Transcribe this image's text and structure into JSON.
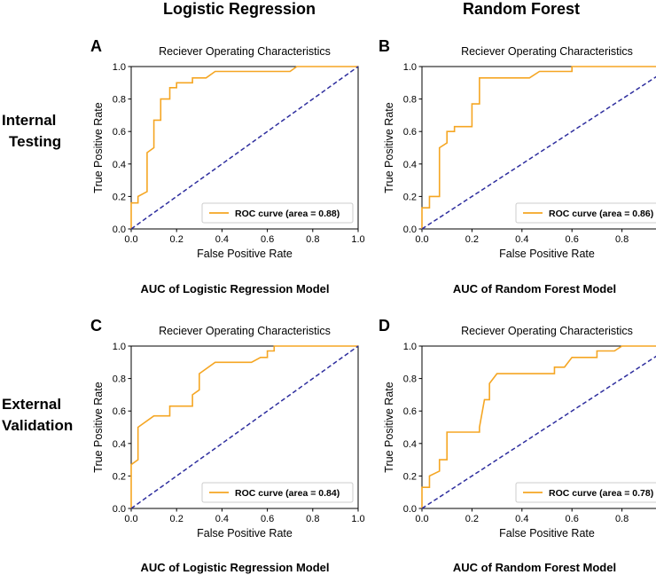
{
  "column_titles": [
    "Logistic Regression",
    "Random Forest"
  ],
  "row_titles": [
    {
      "line1": "Internal",
      "line2": "Testing"
    },
    {
      "line1": "External",
      "line2": "Validation"
    }
  ],
  "chart_data": [
    {
      "type": "line",
      "panel": "A",
      "title": "Reciever Operating Characteristics",
      "xlabel": "False Positive Rate",
      "ylabel": "True Positive Rate",
      "xlim": [
        0,
        1
      ],
      "ylim": [
        0,
        1
      ],
      "xticks": [
        "0.0",
        "0.2",
        "0.4",
        "0.6",
        "0.8",
        "1.0"
      ],
      "yticks": [
        "0.0",
        "0.2",
        "0.4",
        "0.6",
        "0.8",
        "1.0"
      ],
      "legend": "ROC curve (area = 0.88)",
      "legend_position": "lower-right",
      "caption": "AUC of Logistic Regression Model",
      "series": [
        {
          "name": "ROC curve",
          "color": "#f5a623",
          "points": [
            [
              0,
              0
            ],
            [
              0,
              0.16
            ],
            [
              0.03,
              0.16
            ],
            [
              0.03,
              0.2
            ],
            [
              0.07,
              0.23
            ],
            [
              0.07,
              0.47
            ],
            [
              0.1,
              0.5
            ],
            [
              0.1,
              0.67
            ],
            [
              0.13,
              0.67
            ],
            [
              0.13,
              0.8
            ],
            [
              0.17,
              0.8
            ],
            [
              0.17,
              0.87
            ],
            [
              0.2,
              0.87
            ],
            [
              0.2,
              0.9
            ],
            [
              0.27,
              0.9
            ],
            [
              0.27,
              0.93
            ],
            [
              0.33,
              0.93
            ],
            [
              0.37,
              0.97
            ],
            [
              0.7,
              0.97
            ],
            [
              0.73,
              1.0
            ],
            [
              1.0,
              1.0
            ]
          ]
        },
        {
          "name": "chance",
          "color": "#2e2e9e",
          "dashed": true,
          "points": [
            [
              0,
              0
            ],
            [
              1,
              1
            ]
          ]
        }
      ]
    },
    {
      "type": "line",
      "panel": "B",
      "title": "Reciever Operating Characteristics",
      "xlabel": "False Positive Rate",
      "ylabel": "True Positive Rate",
      "xlim": [
        0,
        1
      ],
      "ylim": [
        0,
        1
      ],
      "xticks": [
        "0.0",
        "0.2",
        "0.4",
        "0.6",
        "0.8",
        "1.0"
      ],
      "yticks": [
        "0.0",
        "0.2",
        "0.4",
        "0.6",
        "0.8",
        "1.0"
      ],
      "legend": "ROC curve (area = 0.86)",
      "legend_position": "lower-right",
      "caption": "AUC of Random Forest Model",
      "series": [
        {
          "name": "ROC curve",
          "color": "#f5a623",
          "points": [
            [
              0,
              0
            ],
            [
              0,
              0.13
            ],
            [
              0.03,
              0.13
            ],
            [
              0.03,
              0.2
            ],
            [
              0.07,
              0.2
            ],
            [
              0.07,
              0.5
            ],
            [
              0.1,
              0.53
            ],
            [
              0.1,
              0.6
            ],
            [
              0.13,
              0.6
            ],
            [
              0.13,
              0.63
            ],
            [
              0.17,
              0.63
            ],
            [
              0.2,
              0.63
            ],
            [
              0.2,
              0.77
            ],
            [
              0.23,
              0.77
            ],
            [
              0.23,
              0.93
            ],
            [
              0.43,
              0.93
            ],
            [
              0.47,
              0.97
            ],
            [
              0.6,
              0.97
            ],
            [
              0.6,
              1.0
            ],
            [
              1.0,
              1.0
            ]
          ]
        },
        {
          "name": "chance",
          "color": "#2e2e9e",
          "dashed": true,
          "points": [
            [
              0,
              0
            ],
            [
              1,
              1
            ]
          ]
        }
      ]
    },
    {
      "type": "line",
      "panel": "C",
      "title": "Reciever Operating Characteristics",
      "xlabel": "False Positive Rate",
      "ylabel": "True Positive Rate",
      "xlim": [
        0,
        1
      ],
      "ylim": [
        0,
        1
      ],
      "xticks": [
        "0.0",
        "0.2",
        "0.4",
        "0.6",
        "0.8",
        "1.0"
      ],
      "yticks": [
        "0.0",
        "0.2",
        "0.4",
        "0.6",
        "0.8",
        "1.0"
      ],
      "legend": "ROC curve (area = 0.84)",
      "legend_position": "lower-right",
      "caption": "AUC of Logistic Regression Model",
      "series": [
        {
          "name": "ROC curve",
          "color": "#f5a623",
          "points": [
            [
              0,
              0
            ],
            [
              0,
              0.27
            ],
            [
              0.03,
              0.3
            ],
            [
              0.03,
              0.5
            ],
            [
              0.1,
              0.57
            ],
            [
              0.17,
              0.57
            ],
            [
              0.17,
              0.63
            ],
            [
              0.27,
              0.63
            ],
            [
              0.27,
              0.7
            ],
            [
              0.3,
              0.73
            ],
            [
              0.3,
              0.83
            ],
            [
              0.37,
              0.9
            ],
            [
              0.53,
              0.9
            ],
            [
              0.57,
              0.93
            ],
            [
              0.6,
              0.93
            ],
            [
              0.6,
              0.97
            ],
            [
              0.63,
              0.97
            ],
            [
              0.63,
              1.0
            ],
            [
              1.0,
              1.0
            ]
          ]
        },
        {
          "name": "chance",
          "color": "#2e2e9e",
          "dashed": true,
          "points": [
            [
              0,
              0
            ],
            [
              1,
              1
            ]
          ]
        }
      ]
    },
    {
      "type": "line",
      "panel": "D",
      "title": "Reciever Operating Characteristics",
      "xlabel": "False Positive Rate",
      "ylabel": "True Positive Rate",
      "xlim": [
        0,
        1
      ],
      "ylim": [
        0,
        1
      ],
      "xticks": [
        "0.0",
        "0.2",
        "0.4",
        "0.6",
        "0.8",
        "1.0"
      ],
      "yticks": [
        "0.0",
        "0.2",
        "0.4",
        "0.6",
        "0.8",
        "1.0"
      ],
      "legend": "ROC curve (area = 0.78)",
      "legend_position": "lower-right",
      "caption": "AUC of Random Forest Model",
      "series": [
        {
          "name": "ROC curve",
          "color": "#f5a623",
          "points": [
            [
              0,
              0
            ],
            [
              0,
              0.13
            ],
            [
              0.03,
              0.13
            ],
            [
              0.03,
              0.2
            ],
            [
              0.07,
              0.23
            ],
            [
              0.07,
              0.3
            ],
            [
              0.1,
              0.3
            ],
            [
              0.1,
              0.47
            ],
            [
              0.23,
              0.47
            ],
            [
              0.23,
              0.5
            ],
            [
              0.25,
              0.67
            ],
            [
              0.27,
              0.67
            ],
            [
              0.27,
              0.77
            ],
            [
              0.3,
              0.83
            ],
            [
              0.53,
              0.83
            ],
            [
              0.53,
              0.87
            ],
            [
              0.57,
              0.87
            ],
            [
              0.6,
              0.93
            ],
            [
              0.7,
              0.93
            ],
            [
              0.7,
              0.97
            ],
            [
              0.77,
              0.97
            ],
            [
              0.8,
              1.0
            ],
            [
              1.0,
              1.0
            ]
          ]
        },
        {
          "name": "chance",
          "color": "#2e2e9e",
          "dashed": true,
          "points": [
            [
              0,
              0
            ],
            [
              1,
              1
            ]
          ]
        }
      ]
    }
  ]
}
